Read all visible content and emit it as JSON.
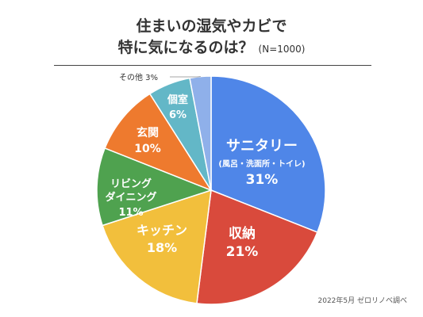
{
  "title": {
    "line1": "住まいの湿気やカビで",
    "line2": "特に気になるのは？",
    "sample": "(N=1000)"
  },
  "source": "2022年5月 ゼロリノベ調べ",
  "chart_data": {
    "type": "pie",
    "start": "12 o'clock, clockwise",
    "slices": [
      {
        "label": "サニタリー",
        "sublabel": "(風呂・洗面所・トイレ)",
        "value": 31,
        "display": "31%",
        "color": "#4f86e8"
      },
      {
        "label": "収納",
        "value": 21,
        "display": "21%",
        "color": "#d94a3c"
      },
      {
        "label": "キッチン",
        "value": 18,
        "display": "18%",
        "color": "#f2bf3c"
      },
      {
        "label": "リビング\nダイニング",
        "value": 11,
        "display": "11%",
        "color": "#4fa24f"
      },
      {
        "label": "玄関",
        "value": 10,
        "display": "10%",
        "color": "#ee7a2e"
      },
      {
        "label": "個室",
        "value": 6,
        "display": "6%",
        "color": "#63b7c7"
      },
      {
        "label": "その他",
        "value": 3,
        "display": "3%",
        "color": "#8fb0ea"
      }
    ]
  }
}
